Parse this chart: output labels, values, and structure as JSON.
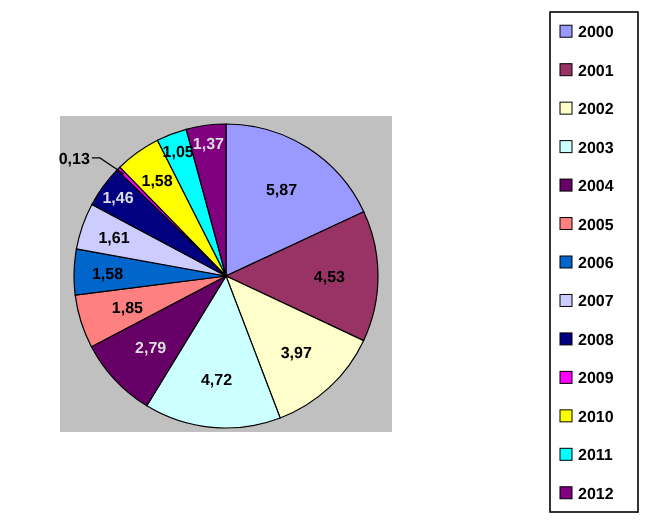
{
  "chart_data": {
    "type": "pie",
    "categories": [
      "2000",
      "2001",
      "2002",
      "2003",
      "2004",
      "2005",
      "2006",
      "2007",
      "2008",
      "2009",
      "2010",
      "2011",
      "2012"
    ],
    "values": [
      5.87,
      4.53,
      3.97,
      4.72,
      2.79,
      1.85,
      1.58,
      1.61,
      1.46,
      0.13,
      1.58,
      1.05,
      1.37
    ],
    "value_labels": [
      "5,87",
      "4,53",
      "3,97",
      "4,72",
      "2,79",
      "1,85",
      "1,58",
      "1,61",
      "1,46",
      "0,13",
      "1,58",
      "1,05",
      "1,37"
    ],
    "colors": [
      "#9999ff",
      "#993366",
      "#ffffcc",
      "#ccffff",
      "#660066",
      "#ff8080",
      "#0066cc",
      "#ccccff",
      "#000080",
      "#ff00ff",
      "#ffff00",
      "#00ffff",
      "#800080"
    ],
    "legend": "right"
  }
}
